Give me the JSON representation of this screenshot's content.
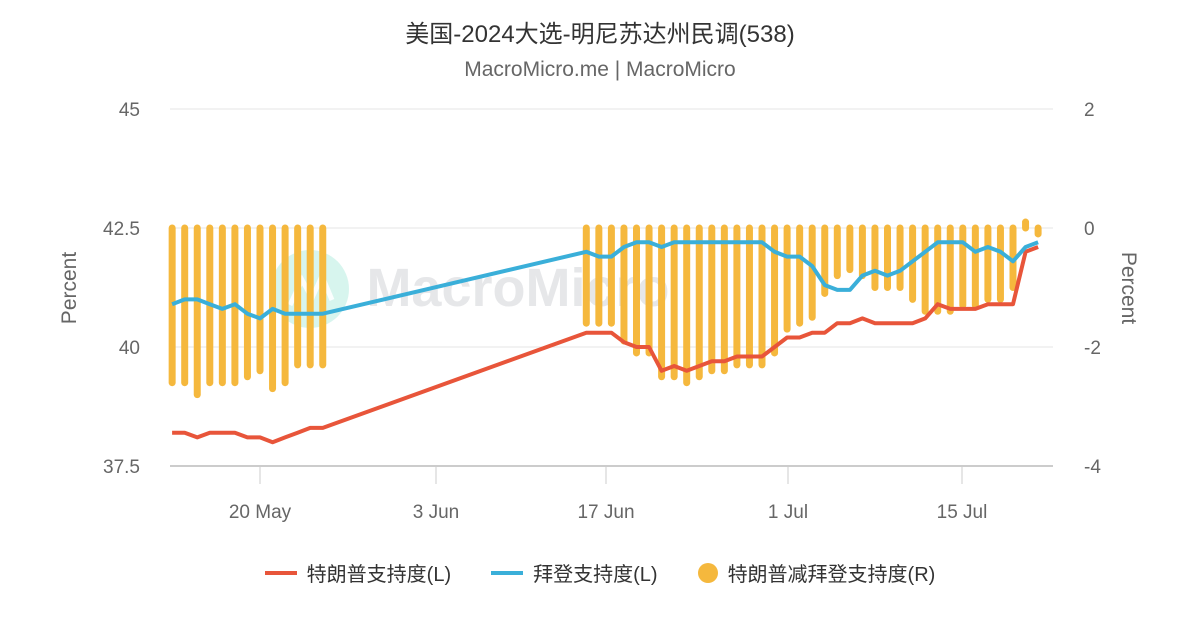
{
  "header": {
    "title": "美国-2024大选-明尼苏达州民调(538)",
    "subtitle": "MacroMicro.me | MacroMicro"
  },
  "watermark": {
    "text": "MacroMicro"
  },
  "colors": {
    "trump": "#E8553A",
    "biden": "#3AAFD9",
    "diff": "#F5B83D",
    "grid": "#E6E6E6",
    "axis_text": "#666666"
  },
  "legend": [
    {
      "label": "特朗普支持度(L)",
      "type": "line",
      "color": "#E8553A"
    },
    {
      "label": "拜登支持度(L)",
      "type": "line",
      "color": "#3AAFD9"
    },
    {
      "label": "特朗普减拜登支持度(R)",
      "type": "dot",
      "color": "#F5B83D"
    }
  ],
  "chart_data": {
    "type": "line",
    "title": "美国-2024大选-明尼苏达州民调(538)",
    "subtitle": "MacroMicro.me | MacroMicro",
    "xlabel": "",
    "ylabel_left": "Percent",
    "ylabel_right": "Percent",
    "ylim_left": [
      37.5,
      45
    ],
    "ylim_right": [
      -4,
      2
    ],
    "yticks_left": [
      "45",
      "42.5",
      "40",
      "37.5"
    ],
    "yticks_right": [
      "2",
      "0",
      "-2",
      "-4"
    ],
    "xticks": [
      "20 May",
      "3 Jun",
      "17 Jun",
      "1 Jul",
      "15 Jul"
    ],
    "grid": true,
    "legend_position": "bottom",
    "x": [
      "2024-05-13",
      "2024-05-14",
      "2024-05-15",
      "2024-05-16",
      "2024-05-17",
      "2024-05-18",
      "2024-05-19",
      "2024-05-20",
      "2024-05-21",
      "2024-05-22",
      "2024-05-23",
      "2024-05-24",
      "2024-05-25",
      "2024-06-15",
      "2024-06-16",
      "2024-06-17",
      "2024-06-18",
      "2024-06-19",
      "2024-06-20",
      "2024-06-21",
      "2024-06-22",
      "2024-06-23",
      "2024-06-24",
      "2024-06-25",
      "2024-06-26",
      "2024-06-27",
      "2024-06-28",
      "2024-06-29",
      "2024-06-30",
      "2024-07-01",
      "2024-07-02",
      "2024-07-03",
      "2024-07-04",
      "2024-07-05",
      "2024-07-06",
      "2024-07-07",
      "2024-07-08",
      "2024-07-09",
      "2024-07-10",
      "2024-07-11",
      "2024-07-12",
      "2024-07-13",
      "2024-07-14",
      "2024-07-15",
      "2024-07-16",
      "2024-07-17",
      "2024-07-18",
      "2024-07-19",
      "2024-07-20",
      "2024-07-21"
    ],
    "series": [
      {
        "name": "特朗普支持度(L)",
        "axis": "left",
        "type": "line",
        "values": [
          38.2,
          38.2,
          38.1,
          38.2,
          38.2,
          38.2,
          38.1,
          38.1,
          38.0,
          38.1,
          38.2,
          38.3,
          38.3,
          40.3,
          40.3,
          40.3,
          40.1,
          40.0,
          40.0,
          39.5,
          39.6,
          39.5,
          39.6,
          39.7,
          39.7,
          39.8,
          39.8,
          39.8,
          40.0,
          40.2,
          40.2,
          40.3,
          40.3,
          40.5,
          40.5,
          40.6,
          40.5,
          40.5,
          40.5,
          40.5,
          40.6,
          40.9,
          40.8,
          40.8,
          40.8,
          40.9,
          40.9,
          40.9,
          42.0,
          42.1
        ]
      },
      {
        "name": "拜登支持度(L)",
        "axis": "left",
        "type": "line",
        "values": [
          40.9,
          41.0,
          41.0,
          40.9,
          40.8,
          40.9,
          40.7,
          40.6,
          40.8,
          40.7,
          40.7,
          40.7,
          40.7,
          42.0,
          41.9,
          41.9,
          42.1,
          42.2,
          42.2,
          42.1,
          42.2,
          42.2,
          42.2,
          42.2,
          42.2,
          42.2,
          42.2,
          42.2,
          42.0,
          41.9,
          41.9,
          41.7,
          41.3,
          41.2,
          41.2,
          41.5,
          41.6,
          41.5,
          41.6,
          41.8,
          42.0,
          42.2,
          42.2,
          42.2,
          42.0,
          42.1,
          42.0,
          41.8,
          42.1,
          42.2
        ]
      },
      {
        "name": "特朗普减拜登支持度(R)",
        "axis": "right",
        "type": "bar",
        "values": [
          -2.6,
          -2.6,
          -2.8,
          -2.6,
          -2.6,
          -2.6,
          -2.5,
          -2.4,
          -2.7,
          -2.6,
          -2.3,
          -2.3,
          -2.3,
          -1.6,
          -1.6,
          -1.6,
          -1.9,
          -2.1,
          -2.1,
          -2.5,
          -2.5,
          -2.6,
          -2.5,
          -2.4,
          -2.4,
          -2.3,
          -2.3,
          -2.3,
          -2.1,
          -1.7,
          -1.6,
          -1.5,
          -1.1,
          -0.8,
          -0.7,
          -0.8,
          -1.0,
          -1.0,
          -1.0,
          -1.2,
          -1.4,
          -1.4,
          -1.4,
          -1.3,
          -1.3,
          -1.2,
          -1.2,
          -1.0,
          0.1,
          -0.1
        ]
      }
    ]
  }
}
